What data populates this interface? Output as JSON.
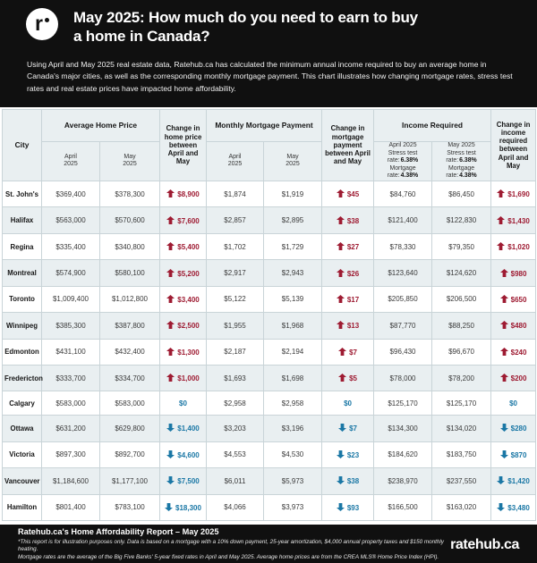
{
  "header": {
    "logo_letter": "r",
    "title_line1": "May 2025: How much do you need to earn to buy",
    "title_line2": "a home in Canada?",
    "description": "Using April and May 2025 real estate data, Ratehub.ca has calculated the minimum annual income required to buy an average home in Canada's major cities, as well as the corresponding monthly mortgage payment. This chart illustrates how changing mortgage rates, stress test rates and real estate prices have impacted home affordability."
  },
  "table": {
    "headers": {
      "city": "City",
      "avg_home_price": "Average Home Price",
      "change_home_price": "Change in home price between April and May",
      "monthly_mortgage_payment": "Monthly Mortgage Payment",
      "change_mortgage_payment": "Change in mortgage payment between April and May",
      "income_required": "Income Required",
      "change_income_required": "Change in income required between April and May",
      "sub_april": "April 2025",
      "sub_may": "May 2025",
      "income_april": {
        "month": "April 2025",
        "stress_label": "Stress test rate:",
        "stress_value": "6.38%",
        "mortgage_label": "Mortgage rate:",
        "mortgage_value": "4.38%"
      },
      "income_may": {
        "month": "May 2025",
        "stress_label": "Stress test rate:",
        "stress_value": "6.38%",
        "mortgage_label": "Mortgage rate:",
        "mortgage_value": "4.38%"
      }
    }
  },
  "chart_data": {
    "type": "table",
    "title": "May 2025: How much do you need to earn to buy a home in Canada?",
    "columns": [
      "City",
      "Average Home Price April 2025",
      "Average Home Price May 2025",
      "Change in home price between April and May",
      "Monthly Mortgage Payment April 2025",
      "Monthly Mortgage Payment May 2025",
      "Change in mortgage payment between April and May",
      "Income Required April 2025 (Stress test rate: 6.38%, Mortgage rate: 4.38%)",
      "Income Required May 2025 (Stress test rate: 6.38%, Mortgage rate: 4.38%)",
      "Change in income required between April and May"
    ],
    "rows": [
      {
        "city": "St. John's",
        "price_apr": "$369,400",
        "price_may": "$378,300",
        "price_change": {
          "dir": "up",
          "value": "$8,900"
        },
        "pay_apr": "$1,874",
        "pay_may": "$1,919",
        "pay_change": {
          "dir": "up",
          "value": "$45"
        },
        "income_apr": "$84,760",
        "income_may": "$86,450",
        "income_change": {
          "dir": "up",
          "value": "$1,690"
        }
      },
      {
        "city": "Halifax",
        "price_apr": "$563,000",
        "price_may": "$570,600",
        "price_change": {
          "dir": "up",
          "value": "$7,600"
        },
        "pay_apr": "$2,857",
        "pay_may": "$2,895",
        "pay_change": {
          "dir": "up",
          "value": "$38"
        },
        "income_apr": "$121,400",
        "income_may": "$122,830",
        "income_change": {
          "dir": "up",
          "value": "$1,430"
        }
      },
      {
        "city": "Regina",
        "price_apr": "$335,400",
        "price_may": "$340,800",
        "price_change": {
          "dir": "up",
          "value": "$5,400"
        },
        "pay_apr": "$1,702",
        "pay_may": "$1,729",
        "pay_change": {
          "dir": "up",
          "value": "$27"
        },
        "income_apr": "$78,330",
        "income_may": "$79,350",
        "income_change": {
          "dir": "up",
          "value": "$1,020"
        }
      },
      {
        "city": "Montreal",
        "price_apr": "$574,900",
        "price_may": "$580,100",
        "price_change": {
          "dir": "up",
          "value": "$5,200"
        },
        "pay_apr": "$2,917",
        "pay_may": "$2,943",
        "pay_change": {
          "dir": "up",
          "value": "$26"
        },
        "income_apr": "$123,640",
        "income_may": "$124,620",
        "income_change": {
          "dir": "up",
          "value": "$980"
        }
      },
      {
        "city": "Toronto",
        "price_apr": "$1,009,400",
        "price_may": "$1,012,800",
        "price_change": {
          "dir": "up",
          "value": "$3,400"
        },
        "pay_apr": "$5,122",
        "pay_may": "$5,139",
        "pay_change": {
          "dir": "up",
          "value": "$17"
        },
        "income_apr": "$205,850",
        "income_may": "$206,500",
        "income_change": {
          "dir": "up",
          "value": "$650"
        }
      },
      {
        "city": "Winnipeg",
        "price_apr": "$385,300",
        "price_may": "$387,800",
        "price_change": {
          "dir": "up",
          "value": "$2,500"
        },
        "pay_apr": "$1,955",
        "pay_may": "$1,968",
        "pay_change": {
          "dir": "up",
          "value": "$13"
        },
        "income_apr": "$87,770",
        "income_may": "$88,250",
        "income_change": {
          "dir": "up",
          "value": "$480"
        }
      },
      {
        "city": "Edmonton",
        "price_apr": "$431,100",
        "price_may": "$432,400",
        "price_change": {
          "dir": "up",
          "value": "$1,300"
        },
        "pay_apr": "$2,187",
        "pay_may": "$2,194",
        "pay_change": {
          "dir": "up",
          "value": "$7"
        },
        "income_apr": "$96,430",
        "income_may": "$96,670",
        "income_change": {
          "dir": "up",
          "value": "$240"
        }
      },
      {
        "city": "Fredericton",
        "price_apr": "$333,700",
        "price_may": "$334,700",
        "price_change": {
          "dir": "up",
          "value": "$1,000"
        },
        "pay_apr": "$1,693",
        "pay_may": "$1,698",
        "pay_change": {
          "dir": "up",
          "value": "$5"
        },
        "income_apr": "$78,000",
        "income_may": "$78,200",
        "income_change": {
          "dir": "up",
          "value": "$200"
        }
      },
      {
        "city": "Calgary",
        "price_apr": "$583,000",
        "price_may": "$583,000",
        "price_change": {
          "dir": "none",
          "value": "$0"
        },
        "pay_apr": "$2,958",
        "pay_may": "$2,958",
        "pay_change": {
          "dir": "none",
          "value": "$0"
        },
        "income_apr": "$125,170",
        "income_may": "$125,170",
        "income_change": {
          "dir": "none",
          "value": "$0"
        }
      },
      {
        "city": "Ottawa",
        "price_apr": "$631,200",
        "price_may": "$629,800",
        "price_change": {
          "dir": "down",
          "value": "$1,400"
        },
        "pay_apr": "$3,203",
        "pay_may": "$3,196",
        "pay_change": {
          "dir": "down",
          "value": "$7"
        },
        "income_apr": "$134,300",
        "income_may": "$134,020",
        "income_change": {
          "dir": "down",
          "value": "$280"
        }
      },
      {
        "city": "Victoria",
        "price_apr": "$897,300",
        "price_may": "$892,700",
        "price_change": {
          "dir": "down",
          "value": "$4,600"
        },
        "pay_apr": "$4,553",
        "pay_may": "$4,530",
        "pay_change": {
          "dir": "down",
          "value": "$23"
        },
        "income_apr": "$184,620",
        "income_may": "$183,750",
        "income_change": {
          "dir": "down",
          "value": "$870"
        }
      },
      {
        "city": "Vancouver",
        "price_apr": "$1,184,600",
        "price_may": "$1,177,100",
        "price_change": {
          "dir": "down",
          "value": "$7,500"
        },
        "pay_apr": "$6,011",
        "pay_may": "$5,973",
        "pay_change": {
          "dir": "down",
          "value": "$38"
        },
        "income_apr": "$238,970",
        "income_may": "$237,550",
        "income_change": {
          "dir": "down",
          "value": "$1,420"
        }
      },
      {
        "city": "Hamilton",
        "price_apr": "$801,400",
        "price_may": "$783,100",
        "price_change": {
          "dir": "down",
          "value": "$18,300"
        },
        "pay_apr": "$4,066",
        "pay_may": "$3,973",
        "pay_change": {
          "dir": "down",
          "value": "$93"
        },
        "income_apr": "$166,500",
        "income_may": "$163,020",
        "income_change": {
          "dir": "down",
          "value": "$3,480"
        }
      }
    ]
  },
  "footer": {
    "report_title": "Ratehub.ca's Home Affordability Report – May 2025",
    "disclaimer_line1": "*This report is for illustration purposes only. Data is based on a mortgage with a 10% down payment, 25-year amortization, $4,000 annual property taxes and $150 monthly heating.",
    "disclaimer_line2": "Mortgage rates are the average of the Big Five Banks' 5-year fixed rates in April and May 2025. Average home prices are from the CREA MLS® Home Price Index (HPI).",
    "wordmark": "ratehub.ca"
  },
  "colors": {
    "increase": "#9e1b32",
    "decrease": "#1a77a5",
    "row_stripe": "#e9eff1",
    "header_bg": "#e9eff1",
    "border": "#c9d4d8",
    "banner_background": "#101010"
  }
}
